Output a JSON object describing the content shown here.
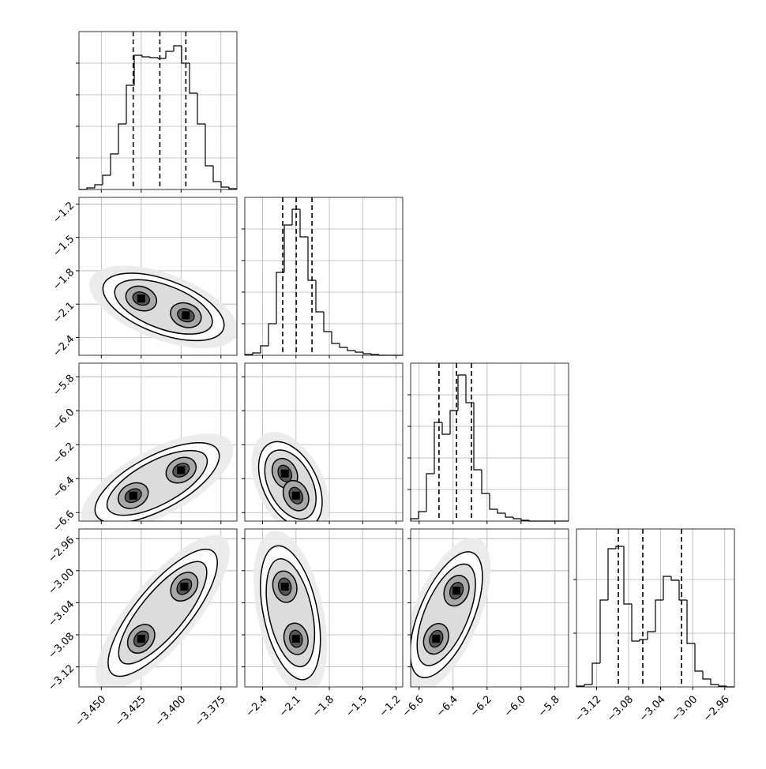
{
  "chart_data": {
    "type": "corner",
    "grid": true,
    "params": [
      {
        "lim": [
          -3.464,
          -3.365
        ],
        "ticks": [
          {
            "value": -3.45,
            "label": "−3.450"
          },
          {
            "value": -3.425,
            "label": "−3.425"
          },
          {
            "value": -3.4,
            "label": "−3.400"
          },
          {
            "value": -3.375,
            "label": "−3.375"
          }
        ],
        "counts": [
          0,
          2,
          6,
          18,
          45,
          83,
          132,
          170,
          168,
          167,
          166,
          175,
          182,
          160,
          122,
          83,
          30,
          10,
          3,
          1
        ],
        "hist_ylim": [
          0,
          200
        ],
        "hist_yticks": [
          40,
          80,
          120,
          160
        ],
        "quantiles": [
          -3.43,
          -3.4133,
          -3.397
        ]
      },
      {
        "lim": [
          -2.56,
          -1.14
        ],
        "ticks": [
          {
            "value": -2.4,
            "label": "−2.4"
          },
          {
            "value": -2.1,
            "label": "−2.1"
          },
          {
            "value": -1.8,
            "label": "−1.8"
          },
          {
            "value": -1.5,
            "label": "−1.5"
          },
          {
            "value": -1.2,
            "label": "−1.2"
          }
        ],
        "counts": [
          1,
          3,
          12,
          40,
          105,
          165,
          185,
          150,
          95,
          55,
          30,
          15,
          10,
          6,
          4,
          2,
          1,
          0,
          0,
          0
        ],
        "hist_ylim": [
          0,
          200
        ],
        "hist_yticks": [
          40,
          80,
          120,
          160
        ],
        "quantiles": [
          -2.219,
          -2.098,
          -1.956
        ]
      },
      {
        "lim": [
          -6.65,
          -5.72
        ],
        "ticks": [
          {
            "value": -6.6,
            "label": "−6.6"
          },
          {
            "value": -6.4,
            "label": "−6.4"
          },
          {
            "value": -6.2,
            "label": "−6.2"
          },
          {
            "value": -6.0,
            "label": "−6.0"
          },
          {
            "value": -5.8,
            "label": "−5.8"
          }
        ],
        "counts": [
          3,
          12,
          60,
          125,
          110,
          140,
          185,
          150,
          65,
          35,
          15,
          10,
          5,
          3,
          1,
          0,
          0,
          0,
          0,
          0
        ],
        "hist_ylim": [
          0,
          200
        ],
        "hist_yticks": [
          40,
          80,
          120,
          160
        ],
        "quantiles": [
          -6.483,
          -6.38,
          -6.292
        ]
      },
      {
        "lim": [
          -3.145,
          -2.948
        ],
        "ticks": [
          {
            "value": -3.12,
            "label": "−3.12"
          },
          {
            "value": -3.08,
            "label": "−3.08"
          },
          {
            "value": -3.04,
            "label": "−3.04"
          },
          {
            "value": -3.0,
            "label": "−3.00"
          },
          {
            "value": -2.96,
            "label": "−2.96"
          }
        ],
        "counts": [
          1,
          3,
          30,
          110,
          175,
          178,
          105,
          58,
          60,
          70,
          110,
          140,
          135,
          110,
          55,
          20,
          10,
          3,
          1,
          0
        ],
        "hist_ylim": [
          0,
          200
        ],
        "hist_yticks": [
          68,
          136
        ],
        "quantiles": [
          -3.0928,
          -3.0623,
          -3.014
        ]
      }
    ],
    "pairs": [
      {
        "col": 0,
        "row": 1,
        "x": [
          -3.425,
          -3.397
        ],
        "y": [
          -2.05,
          -2.2
        ]
      },
      {
        "col": 0,
        "row": 2,
        "x": [
          -3.43,
          -3.4
        ],
        "y": [
          -6.5,
          -6.35
        ]
      },
      {
        "col": 1,
        "row": 2,
        "x": [
          -2.2,
          -2.1
        ],
        "y": [
          -6.37,
          -6.5
        ]
      },
      {
        "col": 0,
        "row": 3,
        "x": [
          -3.425,
          -3.398
        ],
        "y": [
          -3.085,
          -3.02
        ]
      },
      {
        "col": 1,
        "row": 3,
        "x": [
          -2.2,
          -2.1
        ],
        "y": [
          -3.02,
          -3.085
        ]
      },
      {
        "col": 2,
        "row": 3,
        "x": [
          -6.5,
          -6.38
        ],
        "y": [
          -3.085,
          -3.025
        ]
      }
    ]
  }
}
